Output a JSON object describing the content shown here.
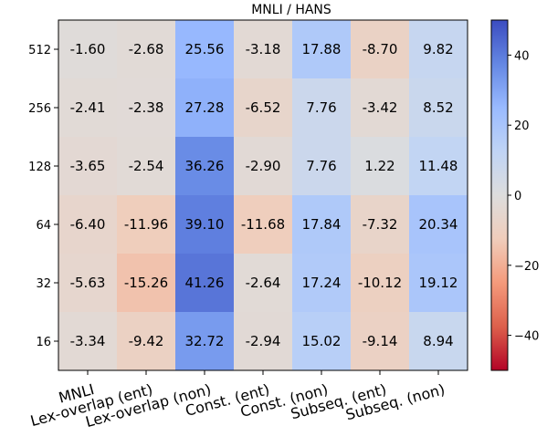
{
  "chart_data": {
    "type": "heatmap",
    "title": "MNLI / HANS",
    "x_categories": [
      "MNLI",
      "Lex-overlap (ent)",
      "Lex-overlap (non)",
      "Const. (ent)",
      "Const. (non)",
      "Subseq. (ent)",
      "Subseq. (non)"
    ],
    "y_categories": [
      "512",
      "256",
      "128",
      "64",
      "32",
      "16"
    ],
    "values": [
      [
        -1.6,
        -2.68,
        25.56,
        -3.18,
        17.88,
        -8.7,
        9.82
      ],
      [
        -2.41,
        -2.38,
        27.28,
        -6.52,
        7.76,
        -3.42,
        8.52
      ],
      [
        -3.65,
        -2.54,
        36.26,
        -2.9,
        7.76,
        1.22,
        11.48
      ],
      [
        -6.4,
        -11.96,
        39.1,
        -11.68,
        17.84,
        -7.32,
        20.34
      ],
      [
        -5.63,
        -15.26,
        41.26,
        -2.64,
        17.24,
        -10.12,
        19.12
      ],
      [
        -3.34,
        -9.42,
        32.72,
        -2.94,
        15.02,
        -9.14,
        8.94
      ]
    ],
    "value_labels": [
      [
        "-1.60",
        "-2.68",
        "25.56",
        "-3.18",
        "17.88",
        "-8.70",
        "9.82"
      ],
      [
        "-2.41",
        "-2.38",
        "27.28",
        "-6.52",
        "7.76",
        "-3.42",
        "8.52"
      ],
      [
        "-3.65",
        "-2.54",
        "36.26",
        "-2.90",
        "7.76",
        "1.22",
        "11.48"
      ],
      [
        "-6.40",
        "-11.96",
        "39.10",
        "-11.68",
        "17.84",
        "-7.32",
        "20.34"
      ],
      [
        "-5.63",
        "-15.26",
        "41.26",
        "-2.64",
        "17.24",
        "-10.12",
        "19.12"
      ],
      [
        "-3.34",
        "-9.42",
        "32.72",
        "-2.94",
        "15.02",
        "-9.14",
        "8.94"
      ]
    ],
    "colormap": "coolwarm",
    "colormap_reversed": true,
    "vmin": -50,
    "vmax": 50,
    "colorbar": {
      "ticks": [
        40,
        20,
        0,
        -20,
        -40
      ],
      "tick_labels": [
        "40",
        "20",
        "0",
        "−20",
        "−40"
      ]
    }
  }
}
